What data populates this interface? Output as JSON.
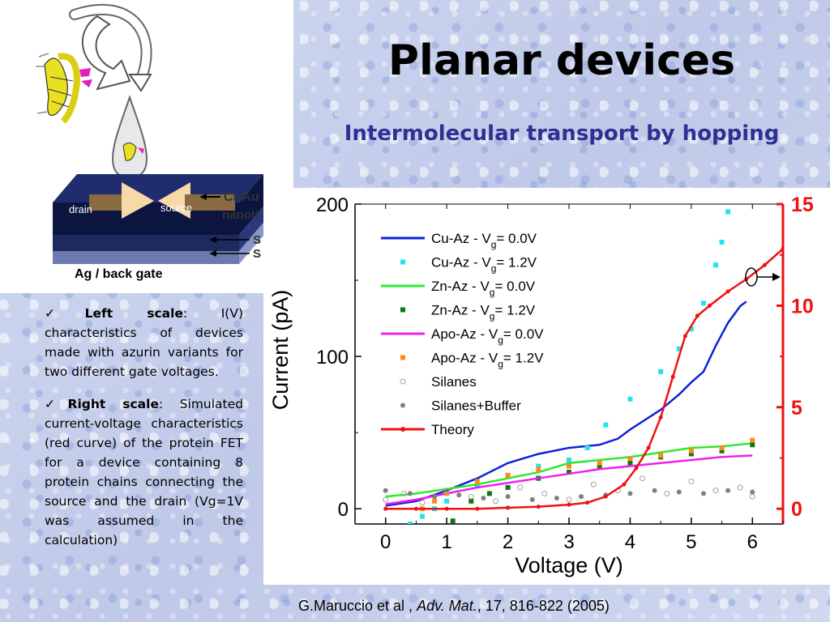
{
  "title": "Planar devices",
  "subtitle": "Intermolecular transport by hopping",
  "illustration": {
    "drain_label": "drain",
    "source_label": "source",
    "electrode_label": "Cr/Au",
    "nanotip_label": "nanoti",
    "layer_label_1": "S",
    "layer_label_2": "S",
    "gate_label": "Ag / back gate"
  },
  "notes": {
    "left": {
      "check": "✓",
      "heading": "Left scale",
      "sep": ": ",
      "text": "I(V) characteristics of devices made with azurin variants for two different gate voltages."
    },
    "right": {
      "check": "✓",
      "heading": "Right scale",
      "sep": ": ",
      "text": "Simulated current-voltage characteristics (red curve) of the protein FET for a device containing 8 protein chains connecting the source and the drain (Vg=1V was assumed in the calculation)"
    }
  },
  "citation": {
    "authors": "G.Maruccio et al , ",
    "journal": "Adv. Mat.",
    "rest": ", 17, 816-822 (2005)"
  },
  "colors": {
    "cu0": "#0a22d8",
    "cu12": "#22e2f2",
    "zn0": "#2ee82e",
    "zn12": "#0b7a0b",
    "apo0": "#f01ef0",
    "apo12": "#ff8a1a",
    "silanes": "#a0a0a0",
    "silanesBuf": "#808080",
    "theory": "#ee1111",
    "title": "#000000",
    "subtitle": "#2e3192"
  },
  "chart_data": {
    "type": "line",
    "xlabel": "Voltage (V)",
    "ylabel": "Current (pA)",
    "xlim": [
      -0.5,
      6.5
    ],
    "ylim": [
      -10,
      200
    ],
    "xticks": [
      0,
      1,
      2,
      3,
      4,
      5,
      6
    ],
    "yticks": [
      0,
      100,
      200
    ],
    "y2lim": [
      -0.75,
      15
    ],
    "y2ticks": [
      0,
      5,
      10,
      15
    ],
    "legend_position": "top-left",
    "series": [
      {
        "name": "Cu-Az  -  V = 0.0V",
        "name_main": "Cu-Az  -  V",
        "name_sub": "g",
        "name_tail": "= 0.0V",
        "style": "line",
        "color": "#0a22d8",
        "axis": "left",
        "x": [
          0,
          0.5,
          1,
          1.5,
          2,
          2.5,
          3,
          3.5,
          3.8,
          4,
          4.5,
          4.8,
          5,
          5.2,
          5.4,
          5.6,
          5.8,
          5.9
        ],
        "y": [
          2,
          5,
          12,
          20,
          30,
          36,
          40,
          42,
          46,
          52,
          65,
          75,
          83,
          90,
          107,
          122,
          133,
          136
        ]
      },
      {
        "name": "Cu-Az  -  V = 1.2V",
        "name_main": "Cu-Az  -  V",
        "name_sub": "g",
        "name_tail": "= 1.2V",
        "style": "square",
        "color": "#22e2f2",
        "axis": "left",
        "x": [
          0.4,
          0.6,
          0.8,
          1,
          1.5,
          2,
          2.5,
          3,
          3.3,
          3.6,
          4,
          4.5,
          4.8,
          5,
          5.2,
          5.4,
          5.5,
          5.6
        ],
        "y": [
          -10,
          -5,
          0,
          5,
          15,
          22,
          28,
          32,
          40,
          55,
          72,
          90,
          105,
          118,
          135,
          160,
          175,
          195
        ]
      },
      {
        "name": "Zn-Az   -  V = 0.0V",
        "name_main": "Zn-Az   -  V",
        "name_sub": "g",
        "name_tail": "= 0.0V",
        "style": "line",
        "color": "#2ee82e",
        "axis": "left",
        "x": [
          0,
          0.5,
          1,
          1.5,
          2,
          2.5,
          3,
          3.5,
          4,
          4.5,
          5,
          5.5,
          6
        ],
        "y": [
          8,
          10,
          13,
          16,
          20,
          24,
          30,
          32,
          34,
          37,
          40,
          41,
          43
        ]
      },
      {
        "name": "Zn-Az   -  V = 1.2V",
        "name_main": "Zn-Az   -  V",
        "name_sub": "g",
        "name_tail": "= 1.2V",
        "style": "square",
        "color": "#0b7a0b",
        "axis": "left",
        "x": [
          1.1,
          1.4,
          1.7,
          2,
          2.5,
          3,
          3.5,
          4,
          4.5,
          5,
          5.5,
          6
        ],
        "y": [
          -8,
          5,
          10,
          14,
          20,
          24,
          28,
          30,
          34,
          36,
          38,
          42
        ]
      },
      {
        "name": "Apo-Az  -  V = 0.0V",
        "name_main": "Apo-Az  -  V",
        "name_sub": "g",
        "name_tail": "= 0.0V",
        "style": "line",
        "color": "#f01ef0",
        "axis": "left",
        "x": [
          0,
          0.5,
          1,
          1.5,
          2,
          2.5,
          3,
          3.5,
          4,
          4.5,
          5,
          5.5,
          6
        ],
        "y": [
          3,
          6,
          10,
          14,
          17,
          20,
          23,
          26,
          28,
          30,
          32,
          34,
          35
        ]
      },
      {
        "name": "Apo-Az  -  V = 1.2V",
        "name_main": "Apo-Az  -  V",
        "name_sub": "g",
        "name_tail": "= 1.2V",
        "style": "square",
        "color": "#ff8a1a",
        "axis": "left",
        "x": [
          0.6,
          0.8,
          1,
          1.5,
          2,
          2.5,
          3,
          3.5,
          4,
          4.5,
          5,
          5.5,
          6
        ],
        "y": [
          0,
          5,
          10,
          18,
          22,
          26,
          28,
          30,
          33,
          35,
          38,
          40,
          45
        ]
      },
      {
        "name": "Silanes",
        "style": "circle-open",
        "color": "#a0a0a0",
        "axis": "left",
        "x": [
          0,
          0.3,
          0.6,
          1,
          1.4,
          1.8,
          2.2,
          2.6,
          3,
          3.4,
          3.8,
          4.2,
          4.6,
          5,
          5.4,
          5.8,
          6
        ],
        "y": [
          6,
          10,
          4,
          12,
          8,
          5,
          14,
          10,
          6,
          16,
          12,
          20,
          10,
          18,
          12,
          14,
          8
        ]
      },
      {
        "name": "Silanes+Buffer",
        "style": "circle-filled",
        "color": "#808080",
        "axis": "left",
        "x": [
          0,
          0.4,
          0.8,
          1.2,
          1.6,
          2,
          2.4,
          2.8,
          3.2,
          3.6,
          4,
          4.4,
          4.8,
          5.2,
          5.6,
          6
        ],
        "y": [
          12,
          10,
          8,
          9,
          7,
          8,
          6,
          7,
          8,
          9,
          10,
          12,
          11,
          10,
          12,
          11
        ]
      },
      {
        "name": "Theory",
        "style": "line-marker",
        "color": "#ee1111",
        "axis": "right",
        "x": [
          0,
          0.5,
          1,
          1.5,
          2,
          2.5,
          3,
          3.3,
          3.6,
          3.9,
          4.1,
          4.3,
          4.5,
          4.7,
          4.9,
          5.1,
          5.3,
          5.6,
          5.9,
          6.2,
          6.5
        ],
        "y": [
          0,
          0,
          0,
          0,
          0.05,
          0.1,
          0.2,
          0.3,
          0.6,
          1.2,
          2,
          3,
          4.5,
          6.5,
          8.5,
          9.5,
          10,
          10.7,
          11.3,
          12,
          12.8
        ]
      }
    ]
  }
}
